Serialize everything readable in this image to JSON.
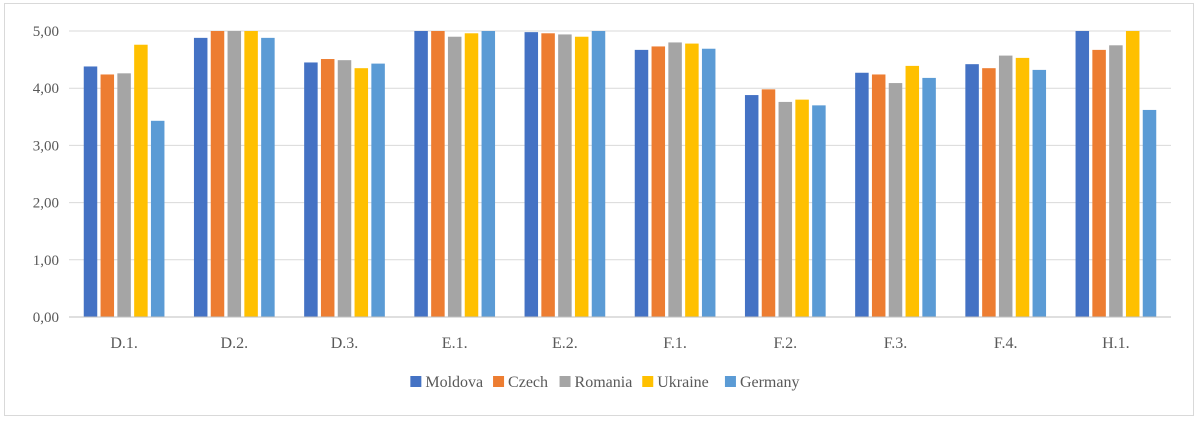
{
  "chart_data": {
    "type": "bar",
    "title": "",
    "xlabel": "",
    "ylabel": "",
    "ylim": [
      0,
      5
    ],
    "y_ticks": [
      "0,00",
      "1,00",
      "2,00",
      "3,00",
      "4,00",
      "5,00"
    ],
    "grid": "horizontal",
    "legend_position": "bottom",
    "categories": [
      "D.1.",
      "D.2.",
      "D.3.",
      "E.1.",
      "E.2.",
      "F.1.",
      "F.2.",
      "F.3.",
      "F.4.",
      "H.1."
    ],
    "series": [
      {
        "name": "Moldova",
        "color": "#4472c4",
        "values": [
          4.38,
          4.88,
          4.45,
          5.0,
          4.98,
          4.67,
          3.88,
          4.27,
          4.42,
          5.0
        ]
      },
      {
        "name": "Czech",
        "color": "#ed7d31",
        "values": [
          4.24,
          5.0,
          4.51,
          5.0,
          4.96,
          4.73,
          3.98,
          4.24,
          4.35,
          4.67
        ]
      },
      {
        "name": "Romania",
        "color": "#a5a5a5",
        "values": [
          4.26,
          5.0,
          4.49,
          4.9,
          4.94,
          4.8,
          3.76,
          4.09,
          4.57,
          4.75
        ]
      },
      {
        "name": "Ukraine",
        "color": "#ffc000",
        "values": [
          4.76,
          5.0,
          4.35,
          4.96,
          4.9,
          4.78,
          3.8,
          4.39,
          4.53,
          5.0
        ]
      },
      {
        "name": "Germany",
        "color": "#5b9bd5",
        "values": [
          3.43,
          4.88,
          4.43,
          5.0,
          5.0,
          4.69,
          3.7,
          4.18,
          4.32,
          3.62
        ]
      }
    ]
  }
}
